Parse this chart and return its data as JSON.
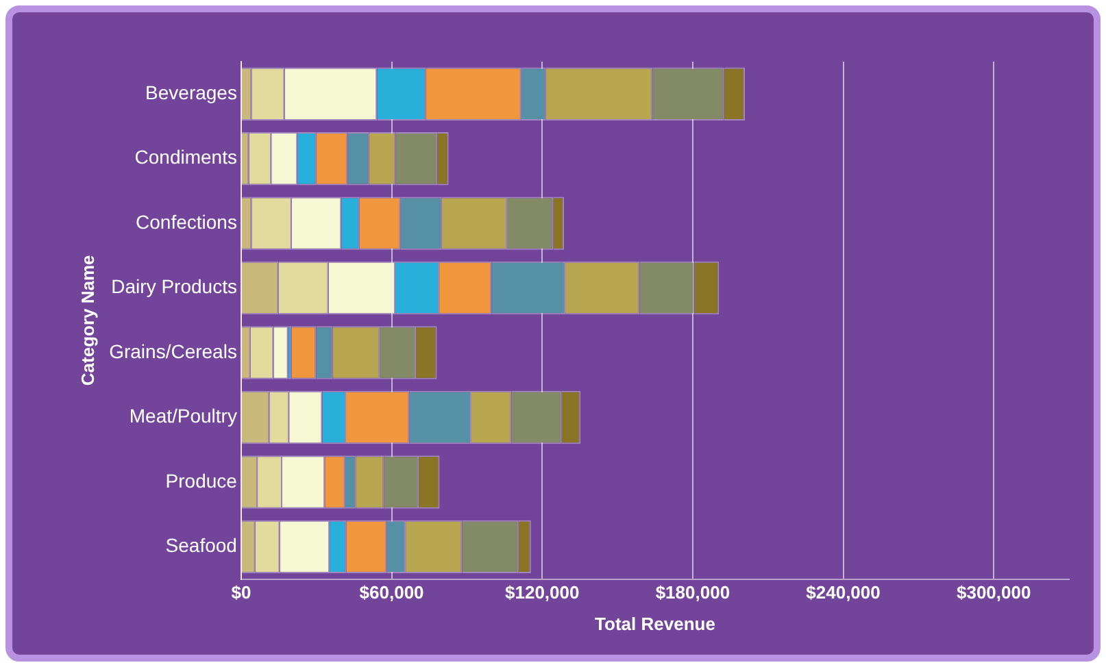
{
  "chart_data": {
    "type": "bar",
    "orientation": "horizontal",
    "stacked": true,
    "xlabel": "Total Revenue",
    "ylabel": "Category Name",
    "categories": [
      "Beverages",
      "Condiments",
      "Confections",
      "Dairy Products",
      "Grains/Cereals",
      "Meat/Poultry",
      "Produce",
      "Seafood"
    ],
    "series": [
      {
        "color": "#c9b97a",
        "values": [
          4200,
          3200,
          4200,
          14900,
          3800,
          11300,
          6600,
          5700
        ]
      },
      {
        "color": "#e3da9e",
        "values": [
          13200,
          8900,
          16000,
          20000,
          9200,
          7900,
          9800,
          9800
        ]
      },
      {
        "color": "#f5f8d2",
        "values": [
          36800,
          10400,
          19800,
          26600,
          5800,
          13200,
          17000,
          19800
        ]
      },
      {
        "color": "#29b0da",
        "values": [
          19400,
          7500,
          7200,
          17500,
          1300,
          9400,
          0,
          6600
        ]
      },
      {
        "color": "#f0963c",
        "values": [
          38100,
          12500,
          16400,
          20800,
          9800,
          25300,
          8100,
          16200
        ]
      },
      {
        "color": "#5690a4",
        "values": [
          9800,
          8500,
          16400,
          29400,
          6600,
          24700,
          4200,
          7500
        ]
      },
      {
        "color": "#b8a550",
        "values": [
          42500,
          10600,
          26000,
          29600,
          18700,
          16000,
          11300,
          22500
        ]
      },
      {
        "color": "#828b66",
        "values": [
          28500,
          16600,
          18500,
          21900,
          14500,
          20000,
          13800,
          22500
        ]
      },
      {
        "color": "#8a7526",
        "values": [
          8300,
          4500,
          4200,
          9800,
          8300,
          7500,
          8300,
          4900
        ]
      }
    ],
    "xlim": [
      0,
      330000
    ],
    "xticks": [
      {
        "value": 0,
        "label": "$0"
      },
      {
        "value": 60000,
        "label": "$60,000"
      },
      {
        "value": 120000,
        "label": "$120,000"
      },
      {
        "value": 180000,
        "label": "$180,000"
      },
      {
        "value": 240000,
        "label": "$240,000"
      },
      {
        "value": 300000,
        "label": "$300,000"
      }
    ],
    "grid": "x",
    "legend": false
  }
}
